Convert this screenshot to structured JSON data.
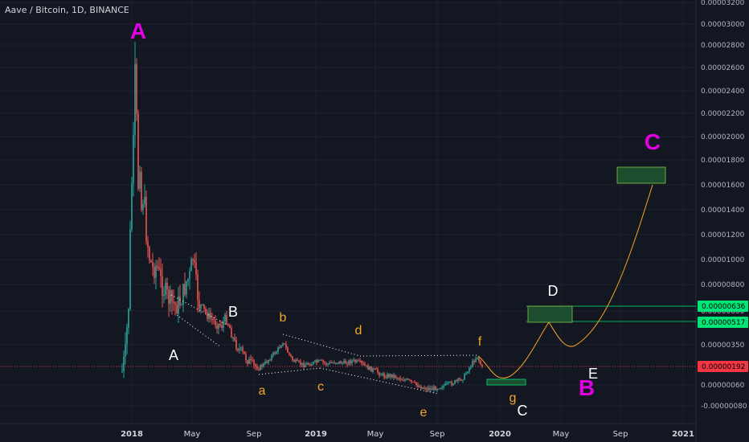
{
  "chart_data": {
    "type": "candlestick",
    "title": "Aave / Bitcoin, 1D, BINANCE",
    "y_ticks": [
      "0.00003200",
      "0.00003000",
      "0.00002800",
      "0.00002600",
      "0.00002400",
      "0.00002200",
      "0.00002000",
      "0.00001800",
      "0.00001600",
      "0.00001400",
      "0.00001200",
      "0.00001000",
      "0.00000800",
      "0.00000600",
      "0.00000350",
      "0.00000060",
      "-0.00000080"
    ],
    "x_ticks": [
      {
        "label": "2018",
        "bold": true
      },
      {
        "label": "May",
        "bold": false
      },
      {
        "label": "Sep",
        "bold": false
      },
      {
        "label": "2019",
        "bold": true
      },
      {
        "label": "May",
        "bold": false
      },
      {
        "label": "Sep",
        "bold": false
      },
      {
        "label": "2020",
        "bold": true
      },
      {
        "label": "May",
        "bold": false
      },
      {
        "label": "Sep",
        "bold": false
      },
      {
        "label": "2021",
        "bold": true
      }
    ],
    "price_badges": [
      {
        "value": "0.00000636",
        "color": "#00e676"
      },
      {
        "value": "0.00000517",
        "color": "#00e676"
      },
      {
        "value": "0.00000192",
        "color": "#f23645"
      }
    ],
    "annotations": [
      {
        "text": "A",
        "color": "#e100e1",
        "size": 28,
        "bold": true
      },
      {
        "text": "B",
        "color": "#e100e1",
        "size": 28,
        "bold": true
      },
      {
        "text": "C",
        "color": "#e100e1",
        "size": 28,
        "bold": true
      },
      {
        "text": "A",
        "color": "#ffffff",
        "size": 18,
        "bold": false
      },
      {
        "text": "B",
        "color": "#ffffff",
        "size": 18,
        "bold": false
      },
      {
        "text": "C",
        "color": "#ffffff",
        "size": 18,
        "bold": false
      },
      {
        "text": "D",
        "color": "#ffffff",
        "size": 18,
        "bold": false
      },
      {
        "text": "E",
        "color": "#ffffff",
        "size": 18,
        "bold": false
      },
      {
        "text": "a",
        "color": "#f5a623",
        "size": 16,
        "bold": false
      },
      {
        "text": "b",
        "color": "#f5a623",
        "size": 16,
        "bold": false
      },
      {
        "text": "c",
        "color": "#f5a623",
        "size": 16,
        "bold": false
      },
      {
        "text": "d",
        "color": "#f5a623",
        "size": 16,
        "bold": false
      },
      {
        "text": "e",
        "color": "#f5a623",
        "size": 16,
        "bold": false
      },
      {
        "text": "f",
        "color": "#f5a623",
        "size": 16,
        "bold": false
      },
      {
        "text": "g",
        "color": "#f5a623",
        "size": 16,
        "bold": false
      }
    ],
    "colors": {
      "up": "#26a69a",
      "down": "#ef5350",
      "projection": "#f5a623",
      "box_fill": "#1b4d2e",
      "box_stroke": "#00e676",
      "current_line": "#f23645"
    },
    "grid": true,
    "legend": "none"
  }
}
